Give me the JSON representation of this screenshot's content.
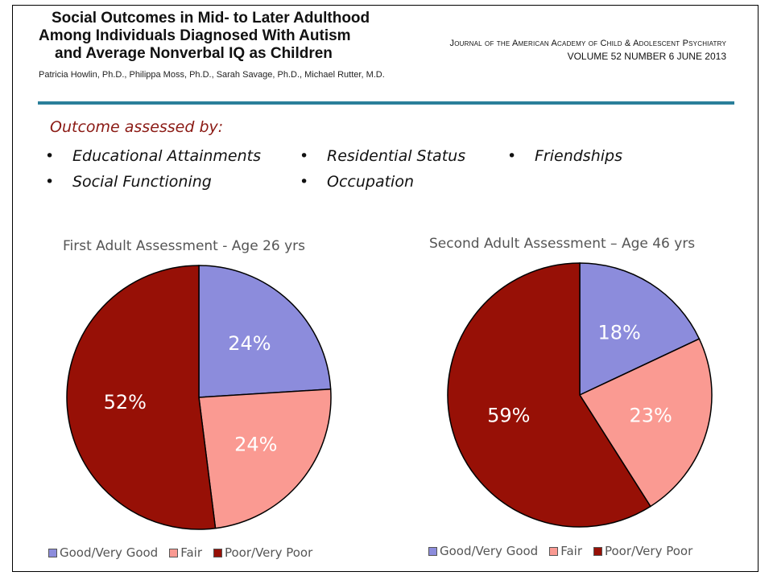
{
  "header": {
    "title_lines": [
      "Social Outcomes in Mid- to Later Adulthood",
      "Among Individuals Diagnosed With Autism",
      "and Average Nonverbal IQ as Children"
    ],
    "authors": "Patricia Howlin, Ph.D., Philippa Moss, Ph.D., Sarah Savage, Ph.D., Michael Rutter, M.D.",
    "journal": "Journal of the American Academy of Child & Adolescent Psychiatry",
    "volume": "VOLUME 52  NUMBER 6  JUNE 2013"
  },
  "outcome": {
    "heading": "Outcome assessed by:",
    "items": [
      "Educational Attainments",
      "Residential Status",
      "Friendships",
      "Social Functioning",
      "Occupation"
    ]
  },
  "colors": {
    "good": "#8c8cdc",
    "fair": "#fa9a92",
    "poor": "#971006",
    "accent_rule": "#2a7f9a",
    "heading": "#8b1a14"
  },
  "chart_data": [
    {
      "type": "pie",
      "title": "First Adult Assessment - Age 26 yrs",
      "slices": [
        {
          "label": "Good/Very Good",
          "value": 24,
          "display": "24%"
        },
        {
          "label": "Fair",
          "value": 24,
          "display": "24%"
        },
        {
          "label": "Poor/Very Poor",
          "value": 52,
          "display": "52%"
        }
      ],
      "legend_position": "bottom"
    },
    {
      "type": "pie",
      "title": "Second Adult Assessment – Age 46 yrs",
      "slices": [
        {
          "label": "Good/Very Good",
          "value": 18,
          "display": "18%"
        },
        {
          "label": "Fair",
          "value": 23,
          "display": "23%"
        },
        {
          "label": "Poor/Very Poor",
          "value": 59,
          "display": "59%"
        }
      ],
      "legend_position": "bottom"
    }
  ]
}
